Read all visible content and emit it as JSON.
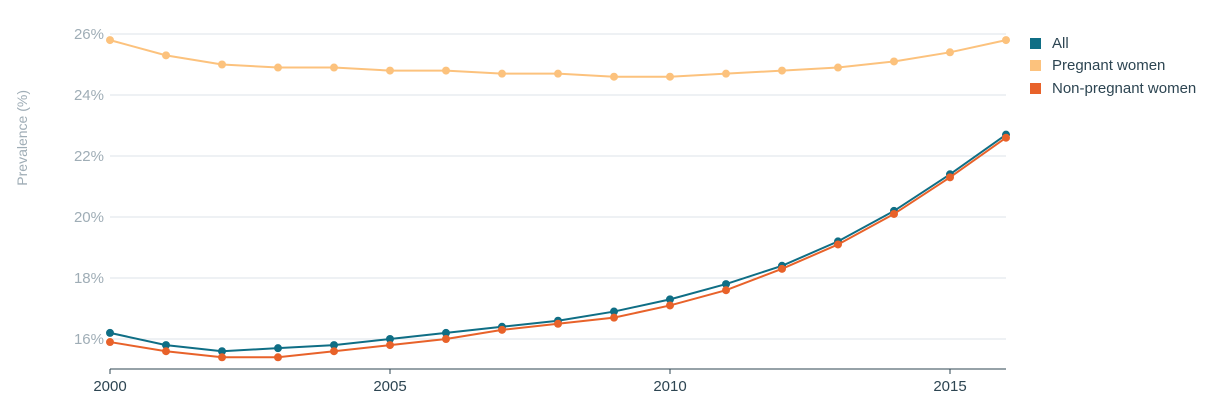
{
  "chart_data": {
    "type": "line",
    "title": "",
    "xlabel": "",
    "ylabel": "Prevalence (%)",
    "x": [
      2000,
      2001,
      2002,
      2003,
      2004,
      2005,
      2006,
      2007,
      2008,
      2009,
      2010,
      2011,
      2012,
      2013,
      2014,
      2015,
      2016
    ],
    "x_ticks": [
      2000,
      2005,
      2010,
      2015
    ],
    "x_tick_labels": [
      "2000",
      "2005",
      "2010",
      "2015"
    ],
    "y_ticks": [
      16,
      18,
      20,
      22,
      24,
      26
    ],
    "y_tick_labels": [
      "16%",
      "18%",
      "20%",
      "22%",
      "24%",
      "26%"
    ],
    "xlim": [
      2000,
      2016
    ],
    "ylim": [
      15,
      26.2
    ],
    "grid": true,
    "legend_position": "right",
    "series": [
      {
        "name": "All",
        "color": "#0f6e85",
        "values": [
          16.2,
          15.8,
          15.6,
          15.7,
          15.8,
          16.0,
          16.2,
          16.4,
          16.6,
          16.9,
          17.3,
          17.8,
          18.4,
          19.2,
          20.2,
          21.4,
          22.7
        ]
      },
      {
        "name": "Pregnant women",
        "color": "#fcc27d",
        "values": [
          25.8,
          25.3,
          25.0,
          24.9,
          24.9,
          24.8,
          24.8,
          24.7,
          24.7,
          24.6,
          24.6,
          24.7,
          24.8,
          24.9,
          25.1,
          25.4,
          25.8
        ]
      },
      {
        "name": "Non-pregnant women",
        "color": "#e8622a",
        "values": [
          15.9,
          15.6,
          15.4,
          15.4,
          15.6,
          15.8,
          16.0,
          16.3,
          16.5,
          16.7,
          17.1,
          17.6,
          18.3,
          19.1,
          20.1,
          21.3,
          22.6
        ]
      }
    ]
  }
}
